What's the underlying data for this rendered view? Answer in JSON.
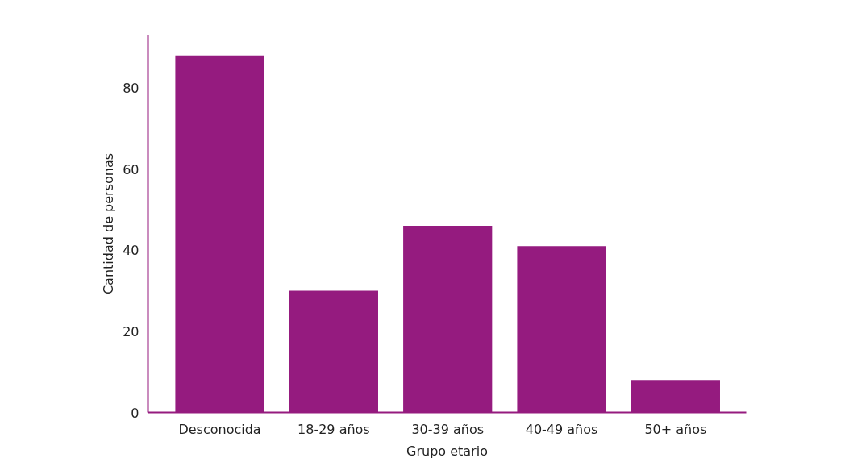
{
  "chart_data": {
    "type": "bar",
    "xlabel": "Grupo etario",
    "ylabel": "Cantidad de personas",
    "categories": [
      "Desconocida",
      "18-29 años",
      "30-39 años",
      "40-49 años",
      "50+ años"
    ],
    "values": [
      88,
      30,
      46,
      41,
      8
    ],
    "color": "#951b7f",
    "ylim": [
      0,
      93
    ],
    "yticks": [
      0,
      20,
      40,
      60,
      80
    ],
    "grid": false
  }
}
